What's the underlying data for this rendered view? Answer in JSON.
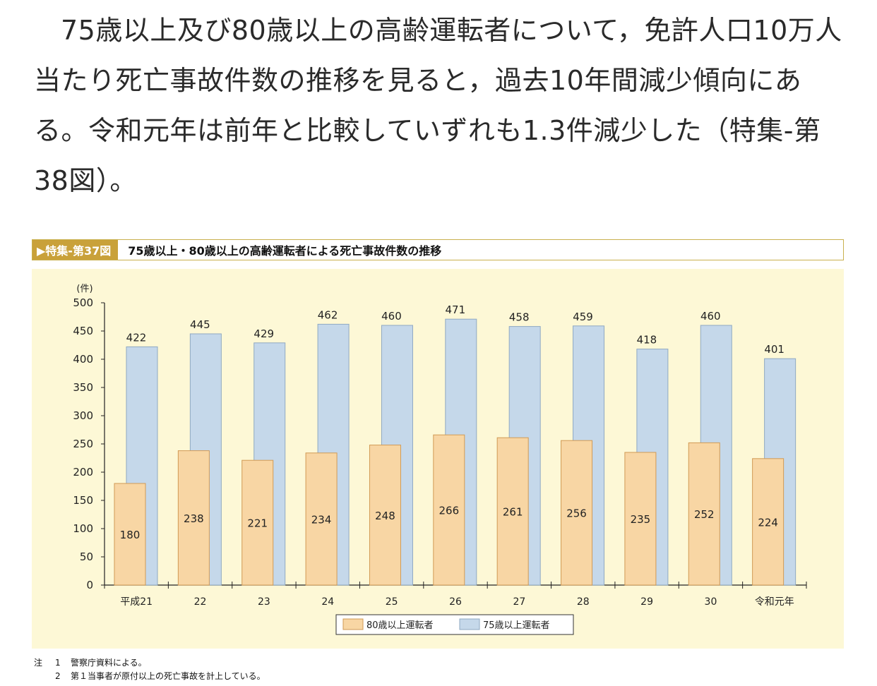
{
  "intro_text": "75歳以上及び80歳以上の高齢運転者について，免許人口10万人当たり死亡事故件数の推移を見ると，過去10年間減少傾向にある。令和元年は前年と比較していずれも1.3件減少した（特集-第38図）。",
  "figure": {
    "label": "▶特集-第37図",
    "title": "75歳以上・80歳以上の高齢運転者による死亡事故件数の推移"
  },
  "chart_data": {
    "type": "bar",
    "title": "75歳以上・80歳以上の高齢運転者による死亡事故件数の推移",
    "ylabel": "(件)",
    "xlabel": "",
    "ylim": [
      0,
      500
    ],
    "yticks": [
      0,
      50,
      100,
      150,
      200,
      250,
      300,
      350,
      400,
      450,
      500
    ],
    "categories": [
      "平成21",
      "22",
      "23",
      "24",
      "25",
      "26",
      "27",
      "28",
      "29",
      "30",
      "令和元年"
    ],
    "series": [
      {
        "name": "80歳以上運転者",
        "color": "#f8d6a4",
        "stroke": "#d19a55",
        "values": [
          180,
          238,
          221,
          234,
          248,
          266,
          261,
          256,
          235,
          252,
          224
        ]
      },
      {
        "name": "75歳以上運転者",
        "color": "#c5d8ea",
        "stroke": "#8fa9c2",
        "values": [
          422,
          445,
          429,
          462,
          460,
          471,
          458,
          459,
          418,
          460,
          401
        ]
      }
    ],
    "grid": false,
    "legend_position": "bottom-center"
  },
  "notes": [
    {
      "mark": "注",
      "num": "1",
      "text": "警察庁資料による。"
    },
    {
      "mark": "",
      "num": "2",
      "text": "第１当事者が原付以上の死亡事故を計上している。"
    }
  ]
}
